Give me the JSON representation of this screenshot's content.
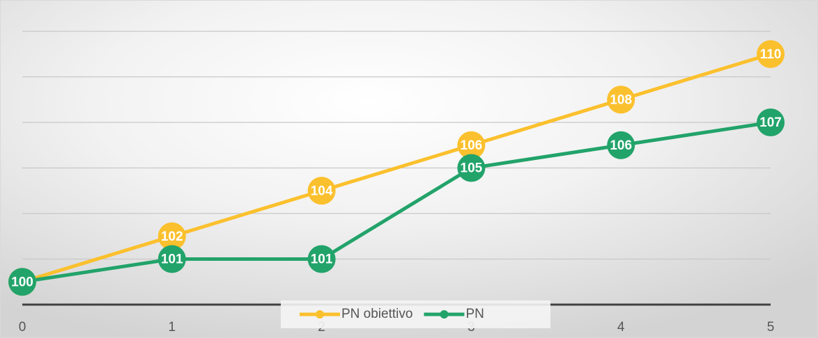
{
  "chart_data": {
    "type": "line",
    "categories": [
      "0",
      "1",
      "2",
      "3",
      "4",
      "5"
    ],
    "series": [
      {
        "name": "PN obiettivo",
        "color": "#fbc02d",
        "values": [
          100,
          102,
          104,
          106,
          108,
          110
        ]
      },
      {
        "name": "PN",
        "color": "#22a36a",
        "values": [
          100,
          101,
          101,
          105,
          106,
          107
        ]
      }
    ],
    "ylim": [
      99,
      111
    ],
    "yticks": [
      99,
      101,
      103,
      105,
      107,
      109,
      111
    ],
    "grid": true,
    "legend": "bottom"
  }
}
